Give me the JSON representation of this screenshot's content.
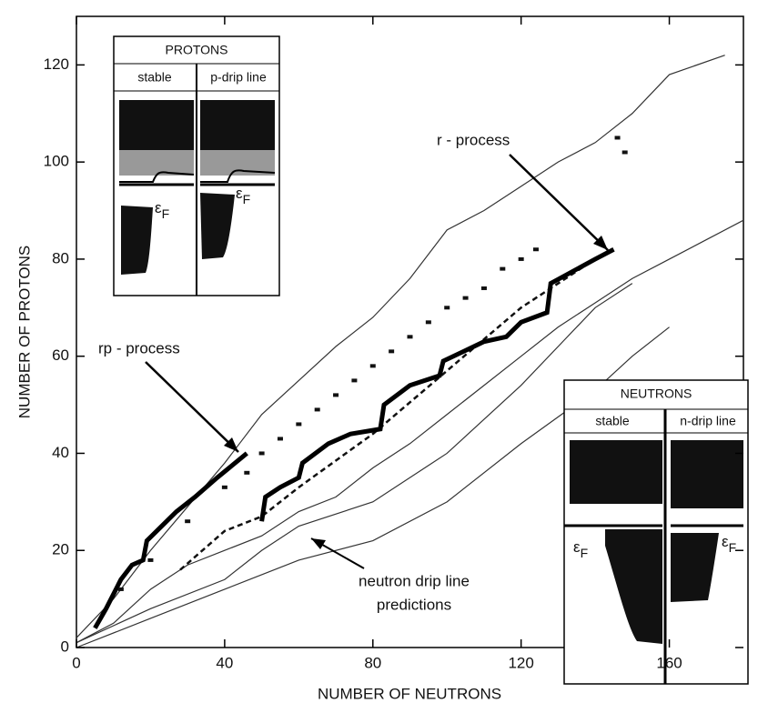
{
  "chart_data": {
    "type": "line",
    "x_label": "NUMBER OF NEUTRONS",
    "y_label": "NUMBER OF PROTONS",
    "xlim": [
      0,
      180
    ],
    "ylim": [
      0,
      130
    ],
    "xticks": [
      0,
      40,
      80,
      120,
      160
    ],
    "yticks": [
      0,
      20,
      40,
      60,
      80,
      100,
      120
    ],
    "series": [
      {
        "style": "thin",
        "color": "#333333",
        "x": [
          0,
          10,
          20,
          30,
          40,
          50,
          60,
          70,
          80,
          90,
          100,
          110,
          120,
          130,
          140,
          150,
          160,
          175
        ],
        "values": [
          2,
          10,
          20,
          29,
          38,
          48,
          55,
          62,
          68,
          76,
          86,
          90,
          95,
          100,
          104,
          110,
          118,
          122
        ]
      },
      {
        "style": "thin",
        "color": "#333333",
        "x": [
          0,
          10,
          20,
          30,
          40,
          50,
          60,
          70,
          80,
          90,
          100,
          110,
          120,
          130,
          140,
          150,
          160,
          170,
          180
        ],
        "values": [
          1,
          5,
          12,
          17,
          20,
          23,
          28,
          31,
          37,
          42,
          48,
          54,
          60,
          66,
          71,
          76,
          80,
          84,
          88
        ]
      },
      {
        "style": "thin",
        "color": "#333333",
        "x": [
          0,
          20,
          40,
          50,
          60,
          80,
          100,
          120,
          130,
          140,
          150
        ],
        "values": [
          1,
          8,
          14,
          20,
          25,
          30,
          40,
          54,
          62,
          70,
          75
        ]
      },
      {
        "style": "thin",
        "color": "#333333",
        "x": [
          0,
          20,
          40,
          60,
          80,
          100,
          120,
          140,
          150,
          160
        ],
        "values": [
          0,
          6,
          12,
          18,
          22,
          30,
          42,
          53,
          60,
          66
        ]
      },
      {
        "style": "dashed",
        "color": "#111111",
        "x": [
          28,
          40,
          50,
          60,
          80,
          100,
          120,
          140
        ],
        "values": [
          16,
          24,
          27,
          33,
          44,
          57,
          70,
          80
        ]
      },
      {
        "style": "thick",
        "color": "#000000",
        "x": [
          5,
          8,
          10,
          12,
          15,
          18,
          19,
          23,
          27,
          32,
          38,
          46
        ],
        "values": [
          4,
          8,
          11,
          14,
          17,
          18,
          22,
          25,
          28,
          31,
          35,
          40
        ]
      },
      {
        "style": "thick",
        "color": "#000000",
        "x": [
          50,
          51,
          55,
          60,
          61,
          68,
          74,
          82,
          83,
          90,
          98,
          99,
          110,
          116,
          120,
          127,
          128,
          140,
          145
        ],
        "values": [
          26,
          31,
          33,
          35,
          38,
          42,
          44,
          45,
          50,
          54,
          56,
          59,
          63,
          64,
          67,
          69,
          75,
          80,
          82
        ]
      },
      {
        "style": "dots",
        "color": "#111111",
        "x": [
          12,
          20,
          30,
          40,
          46,
          50,
          55,
          60,
          65,
          70,
          75,
          80,
          85,
          90,
          95,
          100,
          105,
          110,
          115,
          120,
          124,
          146,
          148
        ],
        "values": [
          12,
          18,
          26,
          33,
          36,
          40,
          43,
          46,
          49,
          52,
          55,
          58,
          61,
          64,
          67,
          70,
          72,
          74,
          78,
          80,
          82,
          105,
          102
        ]
      }
    ],
    "annotations": {
      "r_process": "r - process",
      "rp_process": "rp - process",
      "neutron_drip": [
        "neutron drip line",
        "predictions"
      ]
    },
    "insets": {
      "protons": {
        "title": "PROTONS",
        "left": "stable",
        "right": "p-drip line"
      },
      "neutrons": {
        "title": "NEUTRONS",
        "left": "stable",
        "right": "n-drip line"
      },
      "fermi_symbol": "ε",
      "fermi_subscript": "F"
    }
  }
}
